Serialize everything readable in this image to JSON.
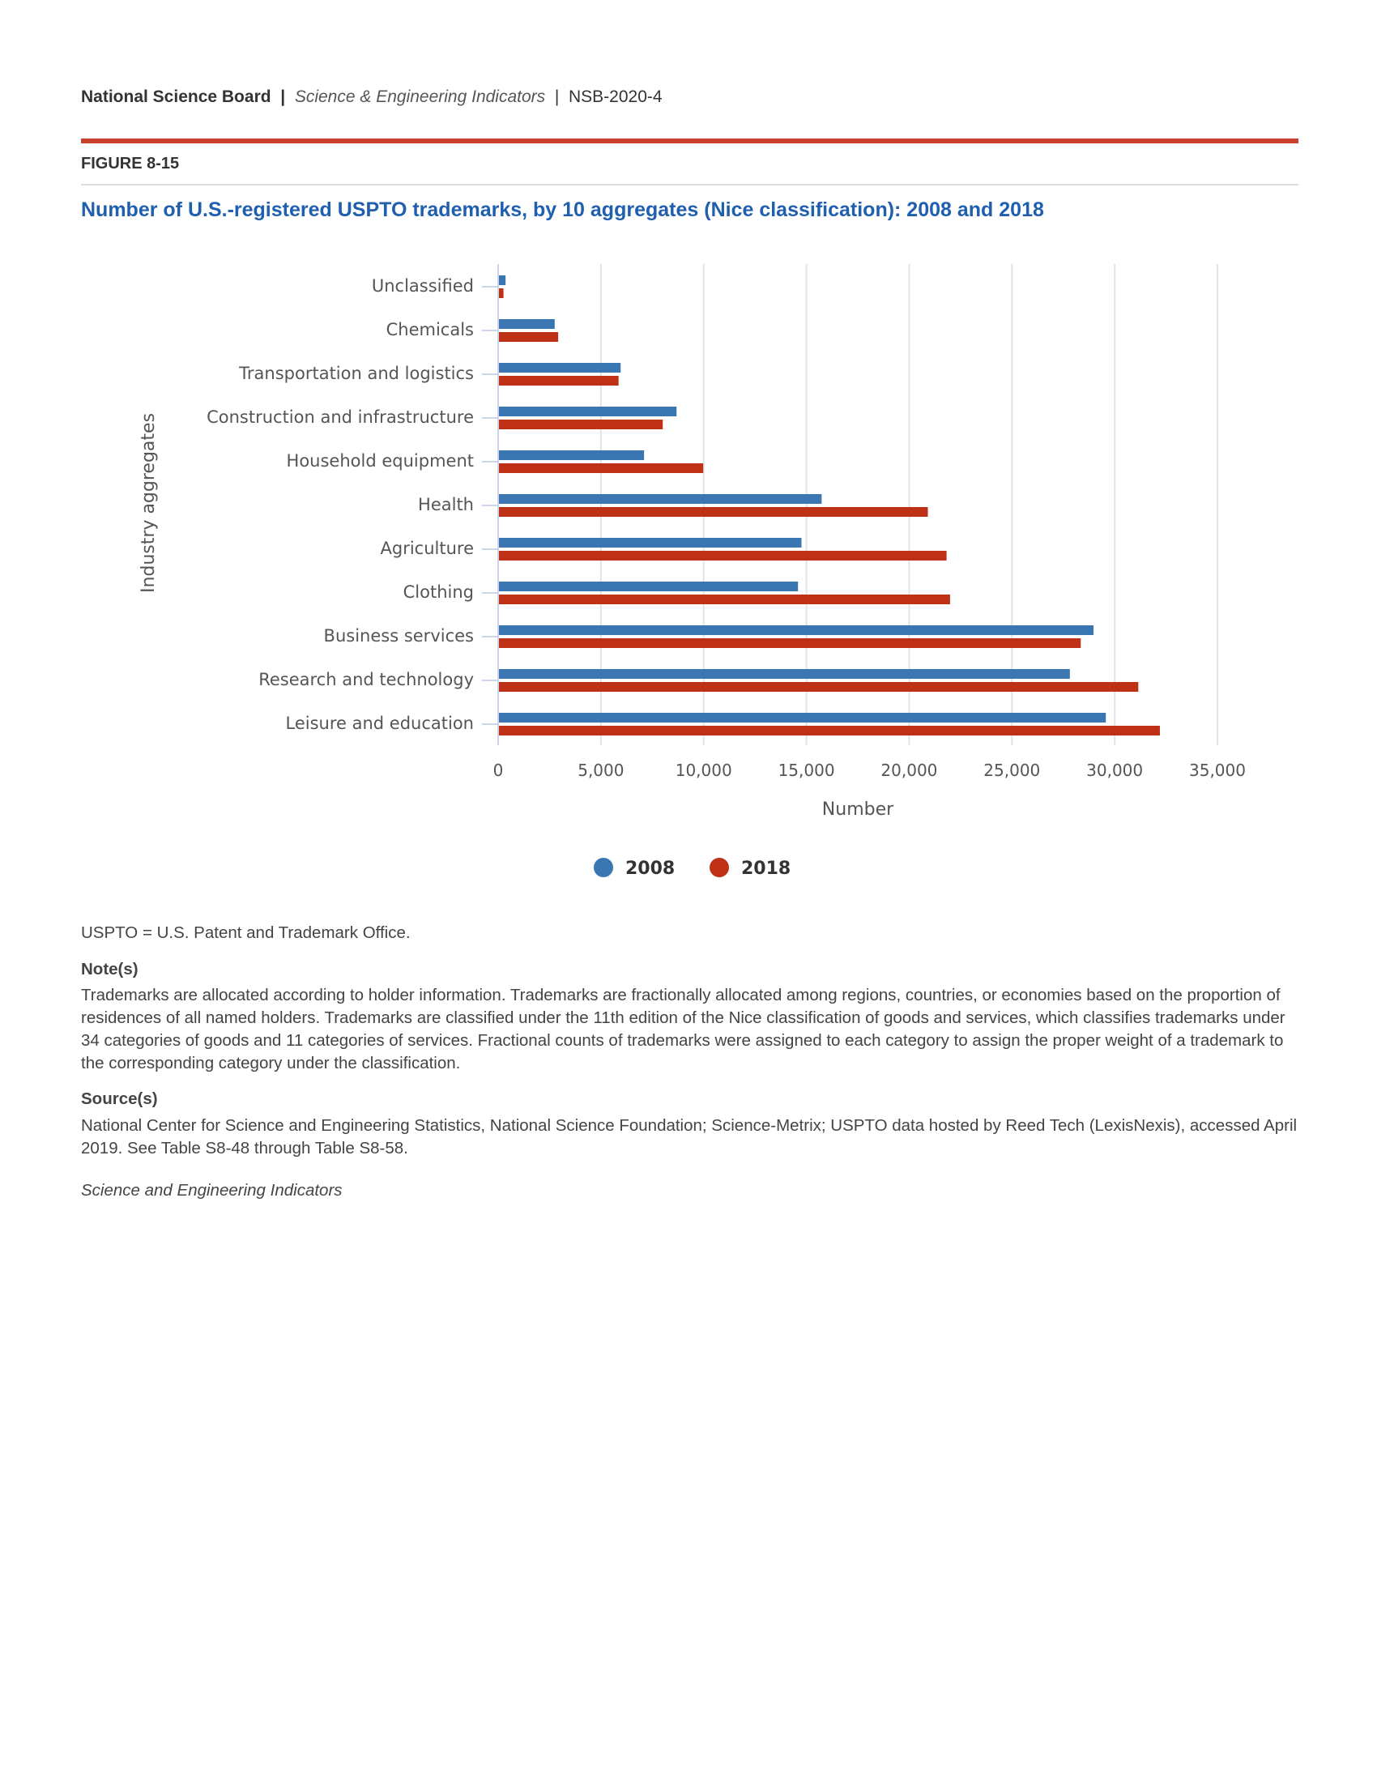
{
  "header": {
    "org": "National Science Board",
    "sep": "|",
    "pub": "Science & Engineering Indicators",
    "code": "NSB-2020-4"
  },
  "figure_label": "FIGURE 8-15",
  "title": "Number of U.S.-registered USPTO trademarks, by 10 aggregates (Nice classification): 2008 and 2018",
  "colors": {
    "2008": "#3a76b1",
    "2018": "#bf3116",
    "rule": "#c8412c",
    "title": "#1f5fae"
  },
  "chart_data": {
    "type": "bar",
    "orientation": "horizontal",
    "grid": true,
    "legend_placement": "bottom",
    "categories": [
      "Unclassified",
      "Chemicals",
      "Transportation and logistics",
      "Construction and infrastructure",
      "Household equipment",
      "Health",
      "Agriculture",
      "Clothing",
      "Business services",
      "Research and technology",
      "Leisure and education"
    ],
    "series": [
      {
        "name": "2008",
        "color": "#3a76b1",
        "values": [
          360,
          2750,
          5960,
          8680,
          7100,
          15740,
          14760,
          14590,
          28970,
          27820,
          29570
        ]
      },
      {
        "name": "2018",
        "color": "#bf3116",
        "values": [
          260,
          2920,
          5860,
          8010,
          9980,
          20910,
          21820,
          21990,
          28350,
          31150,
          32200
        ]
      }
    ],
    "xlabel": "Number",
    "ylabel": "Industry aggregates",
    "xlim": [
      0,
      35000
    ],
    "xticks": [
      0,
      5000,
      10000,
      15000,
      20000,
      25000,
      30000,
      35000
    ],
    "xtick_labels": [
      "0",
      "5,000",
      "10,000",
      "15,000",
      "20,000",
      "25,000",
      "30,000",
      "35,000"
    ]
  },
  "footer": {
    "abbrev": "USPTO = U.S. Patent and Trademark Office.",
    "notes_heading": "Note(s)",
    "notes": "Trademarks are allocated according to holder information. Trademarks are fractionally allocated among regions, countries, or economies based on the proportion of residences of all named holders. Trademarks are classified under the 11th edition of the Nice classification of goods and services, which classifies trademarks under 34 categories of goods and 11 categories of services. Fractional counts of trademarks were assigned to each category to assign the proper weight of a trademark to the corresponding category under the classification.",
    "source_heading": "Source(s)",
    "source": "National Center for Science and Engineering Statistics, National Science Foundation; Science-Metrix; USPTO data hosted by Reed Tech (LexisNexis), accessed April 2019. See Table S8-48 through Table S8-58.",
    "credit": "Science and Engineering Indicators"
  }
}
